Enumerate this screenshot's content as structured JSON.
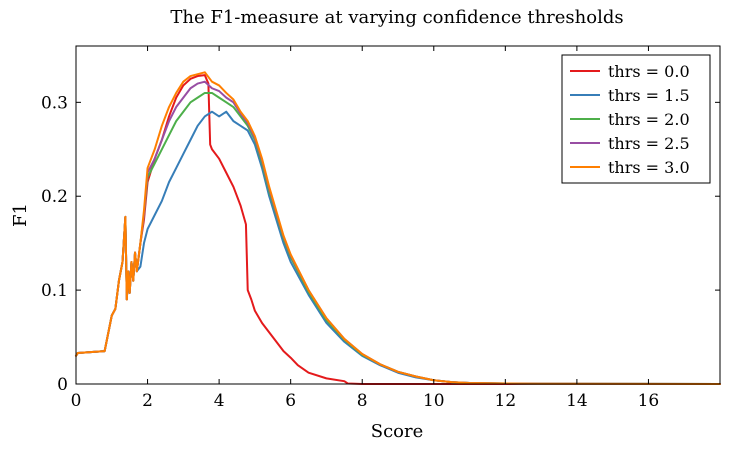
{
  "chart_data": {
    "type": "line",
    "title": "The F1-measure at varying confidence thresholds",
    "xlabel": "Score",
    "ylabel": "F1",
    "xlim": [
      0,
      18
    ],
    "ylim": [
      0,
      0.36
    ],
    "xticks": [
      0,
      2,
      4,
      6,
      8,
      10,
      12,
      14,
      16
    ],
    "xtick_labels": [
      "0",
      "2",
      "4",
      "6",
      "8",
      "10",
      "12",
      "14",
      "16"
    ],
    "yticks": [
      0,
      0.1,
      0.2,
      0.3
    ],
    "ytick_labels": [
      "0",
      "0.1",
      "0.2",
      "0.3"
    ],
    "grid": false,
    "legend_position": "top-right",
    "series": [
      {
        "name": "thrs = 0.0",
        "color": "#e41a1c",
        "x": [
          0,
          0.05,
          0.8,
          1.0,
          1.1,
          1.2,
          1.3,
          1.35,
          1.38,
          1.42,
          1.46,
          1.5,
          1.55,
          1.6,
          1.65,
          1.7,
          1.8,
          1.9,
          2.0,
          2.2,
          2.4,
          2.6,
          2.8,
          3.0,
          3.2,
          3.4,
          3.6,
          3.7,
          3.75,
          3.8,
          4.0,
          4.2,
          4.4,
          4.6,
          4.75,
          4.8,
          4.9,
          5.0,
          5.2,
          5.4,
          5.6,
          5.8,
          6.0,
          6.2,
          6.5,
          7.0,
          7.5,
          7.6,
          8.0,
          18.0
        ],
        "y": [
          0.03,
          0.033,
          0.035,
          0.073,
          0.08,
          0.11,
          0.13,
          0.16,
          0.178,
          0.09,
          0.12,
          0.097,
          0.13,
          0.11,
          0.14,
          0.12,
          0.15,
          0.175,
          0.215,
          0.24,
          0.26,
          0.285,
          0.305,
          0.318,
          0.325,
          0.328,
          0.329,
          0.32,
          0.255,
          0.25,
          0.24,
          0.225,
          0.21,
          0.19,
          0.17,
          0.1,
          0.09,
          0.078,
          0.065,
          0.055,
          0.045,
          0.035,
          0.028,
          0.02,
          0.012,
          0.006,
          0.003,
          0.0005,
          0.0,
          0.0
        ]
      },
      {
        "name": "thrs = 1.5",
        "color": "#377eb8",
        "x": [
          0,
          0.05,
          0.8,
          1.0,
          1.1,
          1.2,
          1.3,
          1.35,
          1.38,
          1.42,
          1.46,
          1.5,
          1.55,
          1.6,
          1.65,
          1.7,
          1.8,
          1.9,
          2.0,
          2.2,
          2.4,
          2.6,
          2.8,
          3.0,
          3.2,
          3.4,
          3.6,
          3.8,
          4.0,
          4.2,
          4.4,
          4.6,
          4.8,
          5.0,
          5.2,
          5.4,
          5.6,
          5.8,
          6.0,
          6.5,
          7.0,
          7.5,
          8.0,
          8.5,
          9.0,
          9.5,
          10.0,
          10.5,
          11.0,
          12.0,
          13.0,
          18.0
        ],
        "y": [
          0.03,
          0.033,
          0.035,
          0.073,
          0.08,
          0.11,
          0.13,
          0.16,
          0.178,
          0.09,
          0.12,
          0.097,
          0.13,
          0.11,
          0.14,
          0.12,
          0.125,
          0.15,
          0.165,
          0.18,
          0.195,
          0.215,
          0.23,
          0.245,
          0.26,
          0.275,
          0.285,
          0.29,
          0.285,
          0.29,
          0.28,
          0.275,
          0.27,
          0.255,
          0.23,
          0.2,
          0.175,
          0.15,
          0.13,
          0.095,
          0.065,
          0.045,
          0.03,
          0.02,
          0.012,
          0.007,
          0.004,
          0.002,
          0.001,
          0.0005,
          0.0002,
          0.0
        ]
      },
      {
        "name": "thrs = 2.0",
        "color": "#4daf4a",
        "x": [
          0,
          0.05,
          0.8,
          1.0,
          1.1,
          1.2,
          1.3,
          1.35,
          1.38,
          1.42,
          1.46,
          1.5,
          1.55,
          1.6,
          1.65,
          1.7,
          1.8,
          1.9,
          2.0,
          2.2,
          2.4,
          2.6,
          2.8,
          3.0,
          3.2,
          3.4,
          3.6,
          3.8,
          4.0,
          4.2,
          4.4,
          4.6,
          4.8,
          5.0,
          5.2,
          5.4,
          5.6,
          5.8,
          6.0,
          6.5,
          7.0,
          7.5,
          8.0,
          8.5,
          9.0,
          9.5,
          10.0,
          10.5,
          11.0,
          12.0,
          13.0,
          18.0
        ],
        "y": [
          0.03,
          0.033,
          0.035,
          0.073,
          0.08,
          0.11,
          0.13,
          0.16,
          0.178,
          0.09,
          0.12,
          0.097,
          0.13,
          0.11,
          0.14,
          0.12,
          0.15,
          0.18,
          0.22,
          0.235,
          0.25,
          0.265,
          0.28,
          0.29,
          0.3,
          0.305,
          0.31,
          0.31,
          0.305,
          0.3,
          0.295,
          0.285,
          0.275,
          0.26,
          0.235,
          0.205,
          0.18,
          0.155,
          0.135,
          0.098,
          0.068,
          0.047,
          0.031,
          0.021,
          0.013,
          0.008,
          0.004,
          0.002,
          0.001,
          0.0005,
          0.0002,
          0.0
        ]
      },
      {
        "name": "thrs = 2.5",
        "color": "#984ea3",
        "x": [
          0,
          0.05,
          0.8,
          1.0,
          1.1,
          1.2,
          1.3,
          1.35,
          1.38,
          1.42,
          1.46,
          1.5,
          1.55,
          1.6,
          1.65,
          1.7,
          1.8,
          1.9,
          2.0,
          2.2,
          2.4,
          2.6,
          2.8,
          3.0,
          3.2,
          3.4,
          3.6,
          3.8,
          4.0,
          4.2,
          4.4,
          4.6,
          4.8,
          5.0,
          5.2,
          5.4,
          5.6,
          5.8,
          6.0,
          6.5,
          7.0,
          7.5,
          8.0,
          8.5,
          9.0,
          9.5,
          10.0,
          10.5,
          11.0,
          12.0,
          13.0,
          18.0
        ],
        "y": [
          0.03,
          0.033,
          0.035,
          0.073,
          0.08,
          0.11,
          0.13,
          0.16,
          0.178,
          0.09,
          0.12,
          0.097,
          0.13,
          0.11,
          0.14,
          0.12,
          0.15,
          0.18,
          0.225,
          0.24,
          0.26,
          0.28,
          0.295,
          0.305,
          0.315,
          0.32,
          0.322,
          0.315,
          0.312,
          0.305,
          0.3,
          0.288,
          0.278,
          0.262,
          0.238,
          0.208,
          0.182,
          0.157,
          0.137,
          0.1,
          0.07,
          0.048,
          0.032,
          0.021,
          0.013,
          0.008,
          0.004,
          0.002,
          0.001,
          0.0005,
          0.0002,
          0.0
        ]
      },
      {
        "name": "thrs = 3.0",
        "color": "#ff7f00",
        "x": [
          0,
          0.05,
          0.8,
          1.0,
          1.1,
          1.2,
          1.3,
          1.35,
          1.38,
          1.42,
          1.46,
          1.5,
          1.55,
          1.6,
          1.65,
          1.7,
          1.8,
          1.9,
          2.0,
          2.2,
          2.4,
          2.6,
          2.8,
          3.0,
          3.2,
          3.4,
          3.6,
          3.8,
          4.0,
          4.2,
          4.4,
          4.6,
          4.8,
          5.0,
          5.2,
          5.4,
          5.6,
          5.8,
          6.0,
          6.5,
          7.0,
          7.5,
          8.0,
          8.5,
          9.0,
          9.5,
          10.0,
          10.5,
          11.0,
          12.0,
          13.0,
          18.0
        ],
        "y": [
          0.03,
          0.033,
          0.035,
          0.073,
          0.08,
          0.11,
          0.13,
          0.16,
          0.178,
          0.09,
          0.12,
          0.097,
          0.13,
          0.11,
          0.14,
          0.12,
          0.15,
          0.185,
          0.23,
          0.25,
          0.275,
          0.295,
          0.31,
          0.322,
          0.328,
          0.33,
          0.332,
          0.322,
          0.318,
          0.31,
          0.303,
          0.29,
          0.28,
          0.264,
          0.24,
          0.21,
          0.184,
          0.158,
          0.138,
          0.1,
          0.07,
          0.048,
          0.032,
          0.021,
          0.013,
          0.008,
          0.004,
          0.002,
          0.001,
          0.0005,
          0.0002,
          0.0
        ]
      }
    ]
  }
}
